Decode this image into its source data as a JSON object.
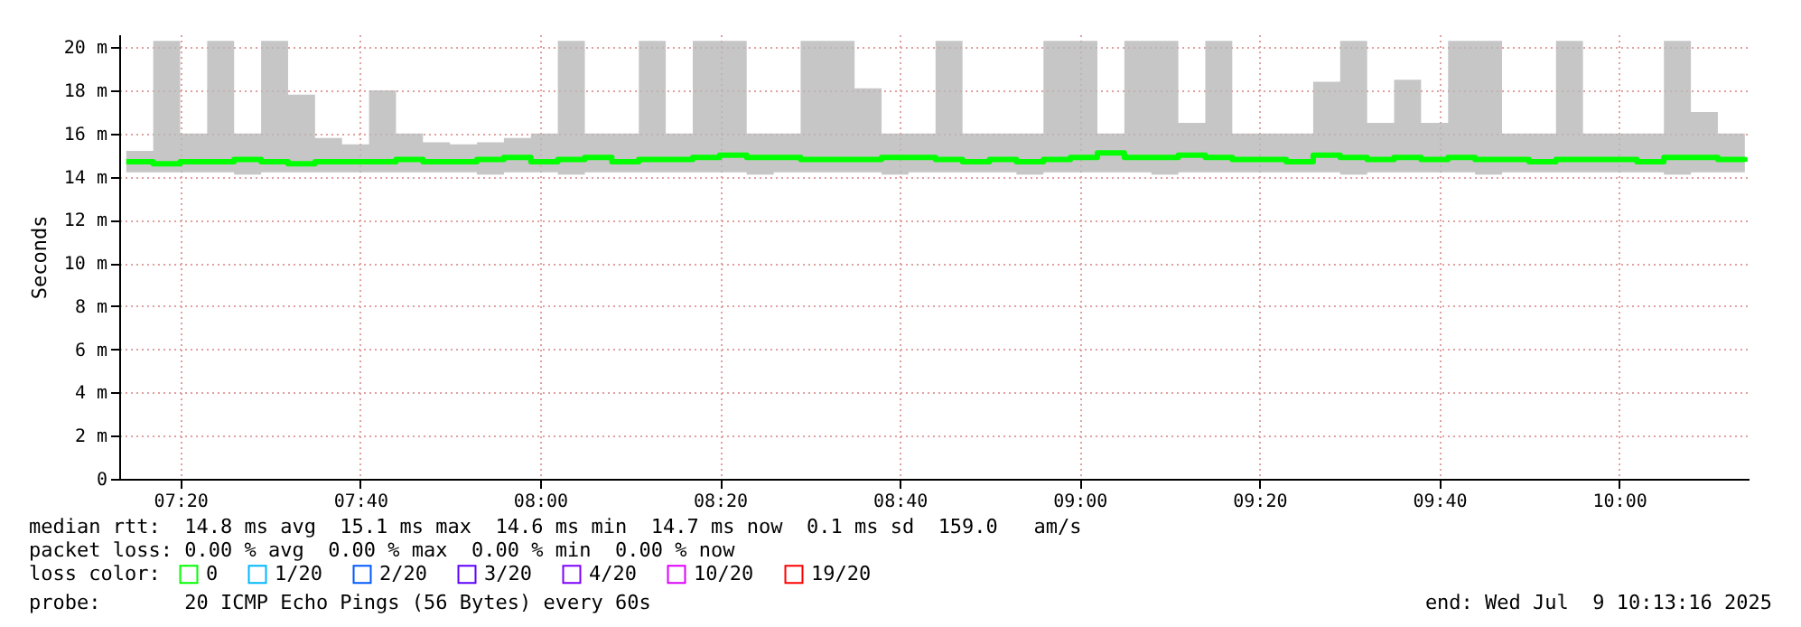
{
  "chart_data": {
    "type": "line",
    "ylabel": "Seconds",
    "legend_title": "loss color:",
    "legend": "bottom",
    "grid": true,
    "xlim": [
      7.22,
      10.24
    ],
    "xticks": [
      {
        "value": 7.3333,
        "label": "07:20"
      },
      {
        "value": 7.6667,
        "label": "07:40"
      },
      {
        "value": 8,
        "label": "08:00"
      },
      {
        "value": 8.3333,
        "label": "08:20"
      },
      {
        "value": 8.6667,
        "label": "08:40"
      },
      {
        "value": 9,
        "label": "09:00"
      },
      {
        "value": 9.3333,
        "label": "09:20"
      },
      {
        "value": 9.6667,
        "label": "09:40"
      },
      {
        "value": 10,
        "label": "10:00"
      }
    ],
    "ylim": [
      0,
      20.6
    ],
    "yticks": [
      0,
      {
        "value": 2,
        "label": "2 m"
      },
      {
        "value": 4,
        "label": "4 m"
      },
      {
        "value": 6,
        "label": "6 m"
      },
      {
        "value": 8,
        "label": "8 m"
      },
      {
        "value": 10,
        "label": "10 m"
      },
      {
        "value": 12,
        "label": "12 m"
      },
      {
        "value": 14,
        "label": "14 m"
      },
      {
        "value": 16,
        "label": "16 m"
      },
      {
        "value": 18,
        "label": "18 m"
      },
      {
        "value": 20,
        "label": "20 m"
      }
    ],
    "x": [
      7.233,
      7.283,
      7.333,
      7.383,
      7.433,
      7.483,
      7.533,
      7.583,
      7.633,
      7.683,
      7.733,
      7.783,
      7.833,
      7.883,
      7.933,
      7.983,
      8.033,
      8.083,
      8.133,
      8.183,
      8.233,
      8.283,
      8.333,
      8.383,
      8.433,
      8.483,
      8.533,
      8.583,
      8.633,
      8.683,
      8.733,
      8.783,
      8.833,
      8.883,
      8.933,
      8.983,
      9.033,
      9.083,
      9.133,
      9.183,
      9.233,
      9.283,
      9.333,
      9.383,
      9.433,
      9.483,
      9.533,
      9.583,
      9.633,
      9.683,
      9.733,
      9.783,
      9.833,
      9.883,
      9.933,
      9.983,
      10.033,
      10.083,
      10.133,
      10.183,
      10.233
    ],
    "series": [
      {
        "name": "0",
        "color": "#00ff00",
        "values": [
          14.7,
          14.6,
          14.7,
          14.7,
          14.8,
          14.7,
          14.6,
          14.7,
          14.7,
          14.7,
          14.8,
          14.7,
          14.7,
          14.8,
          14.9,
          14.7,
          14.8,
          14.9,
          14.7,
          14.8,
          14.8,
          14.9,
          15.0,
          14.9,
          14.9,
          14.8,
          14.8,
          14.8,
          14.9,
          14.9,
          14.8,
          14.7,
          14.8,
          14.7,
          14.8,
          14.9,
          15.1,
          14.9,
          14.9,
          15.0,
          14.9,
          14.8,
          14.8,
          14.7,
          15.0,
          14.9,
          14.8,
          14.9,
          14.8,
          14.9,
          14.8,
          14.8,
          14.7,
          14.8,
          14.8,
          14.8,
          14.7,
          14.9,
          14.9,
          14.8,
          14.7
        ],
        "lower": [
          14.2,
          14.2,
          14.2,
          14.2,
          14.1,
          14.2,
          14.2,
          14.2,
          14.2,
          14.2,
          14.2,
          14.2,
          14.2,
          14.1,
          14.2,
          14.2,
          14.1,
          14.2,
          14.2,
          14.2,
          14.2,
          14.2,
          14.2,
          14.1,
          14.2,
          14.2,
          14.2,
          14.2,
          14.1,
          14.2,
          14.2,
          14.2,
          14.2,
          14.1,
          14.2,
          14.2,
          14.2,
          14.2,
          14.1,
          14.2,
          14.2,
          14.2,
          14.2,
          14.2,
          14.2,
          14.1,
          14.2,
          14.2,
          14.2,
          14.2,
          14.1,
          14.2,
          14.2,
          14.2,
          14.2,
          14.2,
          14.2,
          14.1,
          14.2,
          14.2,
          14.3
        ],
        "upper": [
          15.2,
          20.3,
          16,
          20.3,
          16,
          20.3,
          17.8,
          15.8,
          15.5,
          18,
          16,
          15.6,
          15.5,
          15.6,
          15.8,
          16,
          20.3,
          16,
          16,
          20.3,
          16,
          20.3,
          20.3,
          16,
          16,
          20.3,
          20.3,
          18.1,
          16,
          16,
          20.3,
          16,
          16,
          16,
          20.3,
          20.3,
          16,
          20.3,
          20.3,
          16.5,
          20.3,
          16,
          16,
          16,
          18.4,
          20.3,
          16.5,
          18.5,
          16.5,
          20.3,
          20.3,
          16,
          16,
          20.3,
          16,
          16,
          16,
          20.3,
          17,
          16,
          15.5
        ]
      },
      {
        "name": "1/20",
        "color": "#00b8ff",
        "values": [
          null,
          null,
          null,
          null,
          null,
          null,
          null,
          null,
          null,
          null,
          null,
          null,
          null,
          null,
          null,
          null,
          null,
          null,
          null,
          null,
          null,
          null,
          null,
          null,
          null,
          null,
          null,
          null,
          null,
          null,
          null,
          null,
          null,
          null,
          null,
          null,
          null,
          null,
          null,
          null,
          null,
          null,
          null,
          null,
          null,
          null,
          null,
          null,
          null,
          null,
          null,
          null,
          null,
          null,
          null,
          null,
          null,
          null,
          null,
          null,
          null
        ]
      },
      {
        "name": "2/20",
        "color": "#0059ff",
        "values": [
          null,
          null,
          null,
          null,
          null,
          null,
          null,
          null,
          null,
          null,
          null,
          null,
          null,
          null,
          null,
          null,
          null,
          null,
          null,
          null,
          null,
          null,
          null,
          null,
          null,
          null,
          null,
          null,
          null,
          null,
          null,
          null,
          null,
          null,
          null,
          null,
          null,
          null,
          null,
          null,
          null,
          null,
          null,
          null,
          null,
          null,
          null,
          null,
          null,
          null,
          null,
          null,
          null,
          null,
          null,
          null,
          null,
          null,
          null,
          null,
          null
        ]
      },
      {
        "name": "3/20",
        "color": "#5e00ff",
        "values": [
          null,
          null,
          null,
          null,
          null,
          null,
          null,
          null,
          null,
          null,
          null,
          null,
          null,
          null,
          null,
          null,
          null,
          null,
          null,
          null,
          null,
          null,
          null,
          null,
          null,
          null,
          null,
          null,
          null,
          null,
          null,
          null,
          null,
          null,
          null,
          null,
          null,
          null,
          null,
          null,
          null,
          null,
          null,
          null,
          null,
          null,
          null,
          null,
          null,
          null,
          null,
          null,
          null,
          null,
          null,
          null,
          null,
          null,
          null,
          null,
          null
        ]
      },
      {
        "name": "4/20",
        "color": "#7e00ff",
        "values": [
          null,
          null,
          null,
          null,
          null,
          null,
          null,
          null,
          null,
          null,
          null,
          null,
          null,
          null,
          null,
          null,
          null,
          null,
          null,
          null,
          null,
          null,
          null,
          null,
          null,
          null,
          null,
          null,
          null,
          null,
          null,
          null,
          null,
          null,
          null,
          null,
          null,
          null,
          null,
          null,
          null,
          null,
          null,
          null,
          null,
          null,
          null,
          null,
          null,
          null,
          null,
          null,
          null,
          null,
          null,
          null,
          null,
          null,
          null,
          null,
          null
        ]
      },
      {
        "name": "10/20",
        "color": "#dd00ff",
        "values": [
          null,
          null,
          null,
          null,
          null,
          null,
          null,
          null,
          null,
          null,
          null,
          null,
          null,
          null,
          null,
          null,
          null,
          null,
          null,
          null,
          null,
          null,
          null,
          null,
          null,
          null,
          null,
          null,
          null,
          null,
          null,
          null,
          null,
          null,
          null,
          null,
          null,
          null,
          null,
          null,
          null,
          null,
          null,
          null,
          null,
          null,
          null,
          null,
          null,
          null,
          null,
          null,
          null,
          null,
          null,
          null,
          null,
          null,
          null,
          null,
          null
        ]
      },
      {
        "name": "19/20",
        "color": "#ff0000",
        "values": [
          null,
          null,
          null,
          null,
          null,
          null,
          null,
          null,
          null,
          null,
          null,
          null,
          null,
          null,
          null,
          null,
          null,
          null,
          null,
          null,
          null,
          null,
          null,
          null,
          null,
          null,
          null,
          null,
          null,
          null,
          null,
          null,
          null,
          null,
          null,
          null,
          null,
          null,
          null,
          null,
          null,
          null,
          null,
          null,
          null,
          null,
          null,
          null,
          null,
          null,
          null,
          null,
          null,
          null,
          null,
          null,
          null,
          null,
          null,
          null,
          null
        ]
      }
    ],
    "annotations": [
      "median rtt:  14.8 ms avg  15.1 ms max  14.6 ms min  14.7 ms now  0.1 ms sd  159.0   am/s",
      "packet loss: 0.00 % avg  0.00 % max  0.00 % min  0.00 % now",
      "probe:       20 ICMP Echo Pings (56 Bytes) every 60s",
      "end: Wed Jul  9 10:13:16 2025"
    ]
  }
}
